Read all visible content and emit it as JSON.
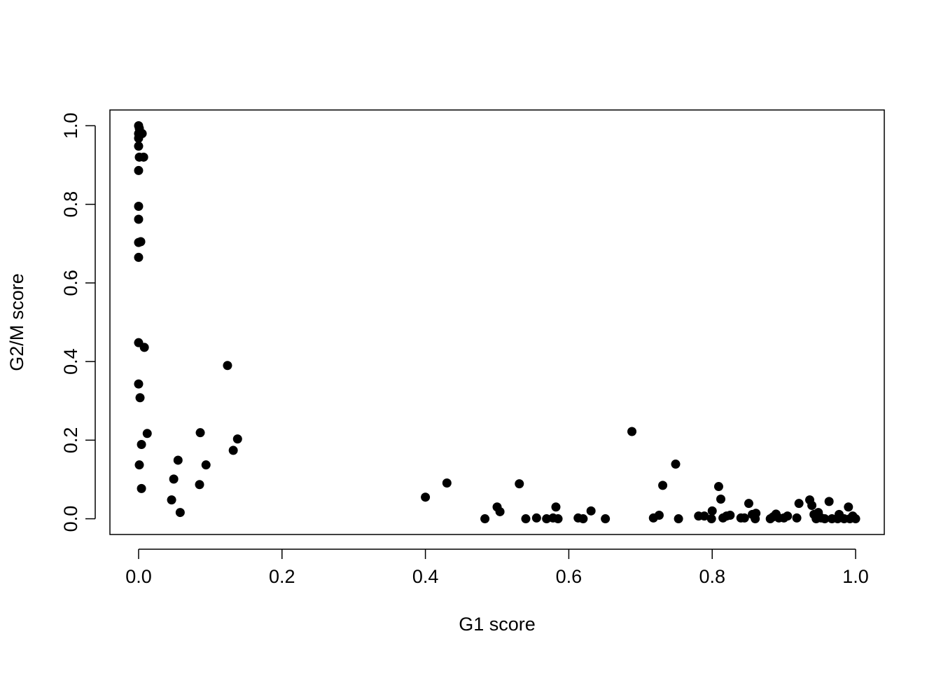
{
  "chart_data": {
    "type": "scatter",
    "color": "#000000",
    "grid": false,
    "x_label": "G1 score",
    "y_label": "G2/M score",
    "xlim": [
      -0.04,
      1.04
    ],
    "ylim": [
      -0.04,
      1.04
    ],
    "xticks": [
      {
        "value": 0,
        "label": "0.0"
      },
      {
        "value": 0.2,
        "label": "0.2"
      },
      {
        "value": 0.4,
        "label": "0.4"
      },
      {
        "value": 0.6,
        "label": "0.6"
      },
      {
        "value": 0.8,
        "label": "0.8"
      },
      {
        "value": 1,
        "label": "1.0"
      }
    ],
    "yticks": [
      {
        "value": 0,
        "label": "0.0"
      },
      {
        "value": 0.2,
        "label": "0.2"
      },
      {
        "value": 0.4,
        "label": "0.4"
      },
      {
        "value": 0.6,
        "label": "0.6"
      },
      {
        "value": 0.8,
        "label": "0.8"
      },
      {
        "value": 1,
        "label": "1.0"
      }
    ],
    "x": [
      0,
      0.001,
      0,
      0.005,
      0,
      0,
      0.001,
      0.007,
      0,
      0,
      0,
      0,
      0.003,
      0,
      0,
      0.008,
      0,
      0.002,
      0.004,
      0.012,
      0.001,
      0.004,
      0.046,
      0.049,
      0.055,
      0.058,
      0.085,
      0.086,
      0.094,
      0.124,
      0.132,
      0.138,
      0.4,
      0.43,
      0.483,
      0.5,
      0.504,
      0.531,
      0.54,
      0.555,
      0.569,
      0.578,
      0.582,
      0.585,
      0.613,
      0.62,
      0.631,
      0.651,
      0.688,
      0.718,
      0.726,
      0.731,
      0.749,
      0.753,
      0.781,
      0.789,
      0.799,
      0.8,
      0.809,
      0.812,
      0.815,
      0.82,
      0.825,
      0.84,
      0.845,
      0.851,
      0.856,
      0.861,
      0.86,
      0.881,
      0.885,
      0.889,
      0.893,
      0.9,
      0.905,
      0.918,
      0.921,
      0.936,
      0.939,
      0.942,
      0.945,
      0.948,
      0.952,
      0.957,
      0.963,
      0.967,
      0.975,
      0.977,
      0.984,
      0.99,
      0.992,
      0.996,
      1.0
    ],
    "y": [
      1.0,
      0.993,
      0.98,
      0.98,
      0.968,
      0.948,
      0.92,
      0.92,
      0.886,
      0.795,
      0.762,
      0.703,
      0.705,
      0.665,
      0.448,
      0.436,
      0.343,
      0.308,
      0.189,
      0.217,
      0.137,
      0.077,
      0.048,
      0.101,
      0.149,
      0.016,
      0.087,
      0.219,
      0.137,
      0.39,
      0.174,
      0.203,
      0.055,
      0.091,
      0,
      0.03,
      0.018,
      0.089,
      0,
      0.002,
      0,
      0.002,
      0.03,
      0,
      0.002,
      0,
      0.02,
      0,
      0.222,
      0.002,
      0.009,
      0.085,
      0.139,
      0,
      0.007,
      0.007,
      0,
      0.02,
      0.082,
      0.05,
      0.002,
      0.007,
      0.009,
      0.002,
      0.002,
      0.039,
      0.011,
      0.014,
      0,
      0,
      0.005,
      0.012,
      0.002,
      0.002,
      0.007,
      0.002,
      0.039,
      0.048,
      0.034,
      0.011,
      0,
      0.016,
      0.002,
      0,
      0.044,
      0,
      0,
      0.011,
      0,
      0.03,
      0,
      0.007,
      0
    ]
  }
}
